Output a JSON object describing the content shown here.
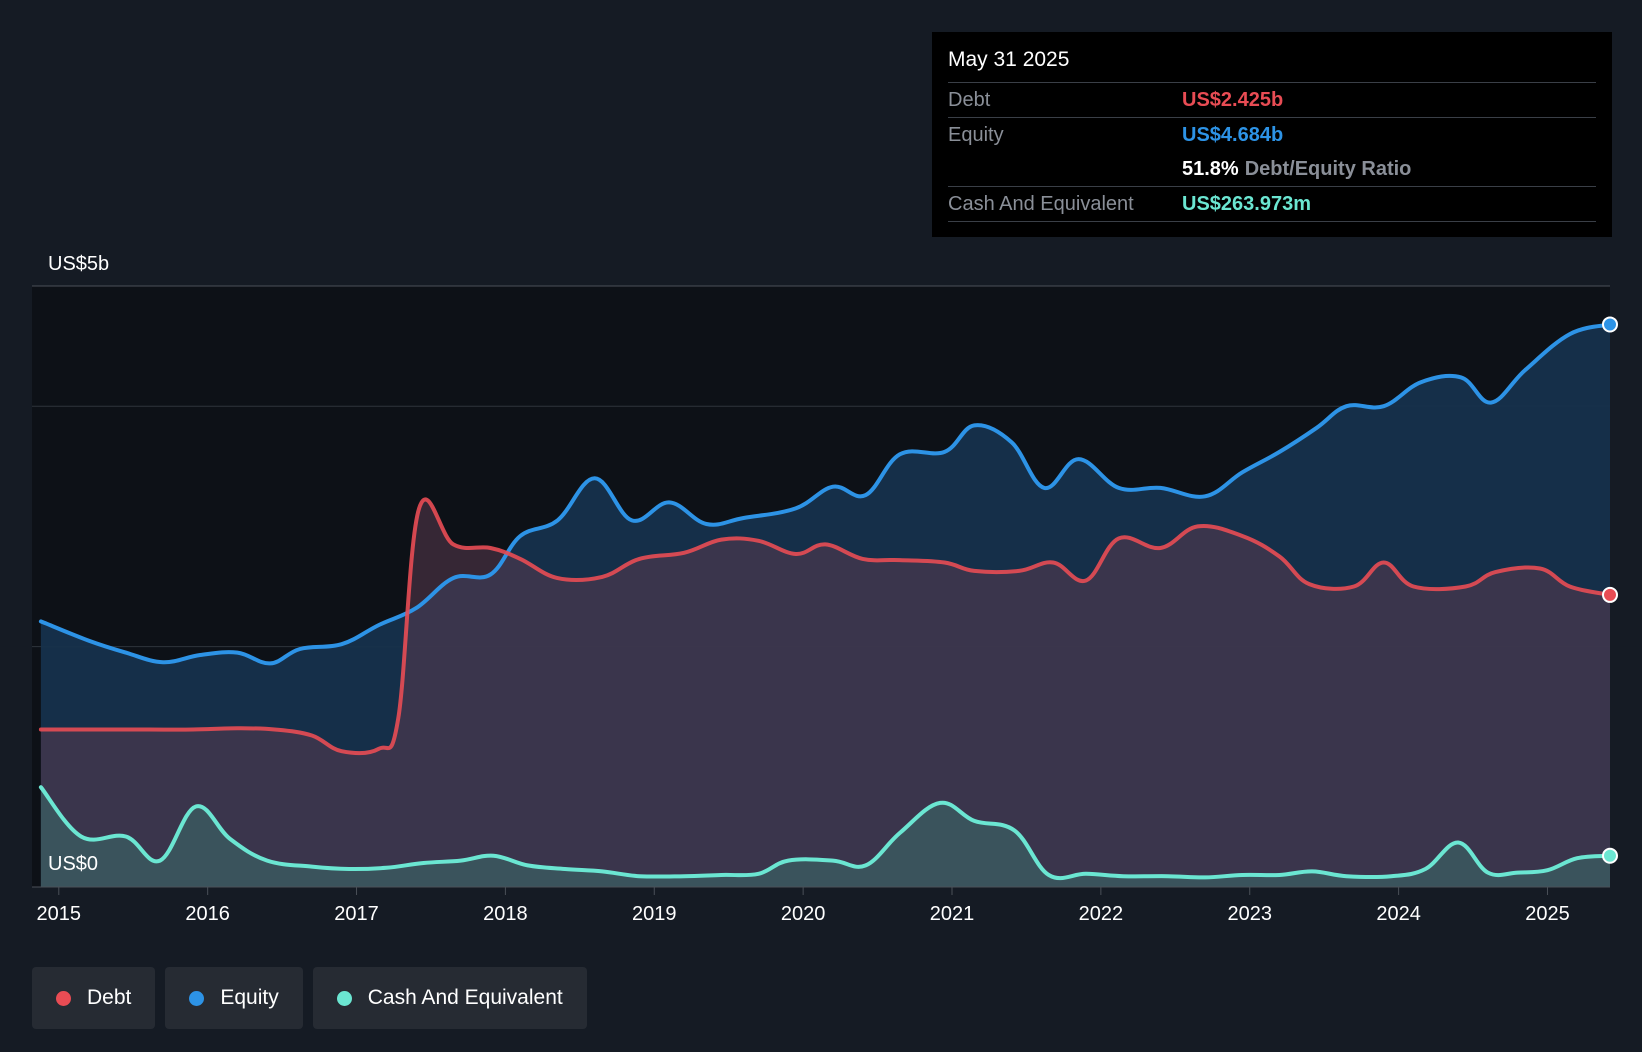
{
  "tooltip": {
    "date": "May 31 2025",
    "debt_label": "Debt",
    "debt_value": "US$2.425b",
    "equity_label": "Equity",
    "equity_value": "US$4.684b",
    "ratio_value": "51.8%",
    "ratio_label": "Debt/Equity Ratio",
    "cash_label": "Cash And Equivalent",
    "cash_value": "US$263.973m"
  },
  "legend": [
    {
      "label": "Debt",
      "color": "#e84c54"
    },
    {
      "label": "Equity",
      "color": "#2d93e6"
    },
    {
      "label": "Cash And Equivalent",
      "color": "#6be6d2"
    }
  ],
  "chart_data": {
    "type": "area",
    "title": "",
    "y_top_label": "US$5b",
    "y_bottom_label": "US$0",
    "ylim": [
      0,
      5
    ],
    "xlim": [
      2014.82,
      2025.42
    ],
    "x_ticks": [
      "2015",
      "2016",
      "2017",
      "2018",
      "2019",
      "2020",
      "2021",
      "2022",
      "2023",
      "2024",
      "2025"
    ],
    "colors": {
      "debt": "#e84c54",
      "equity": "#2d93e6",
      "cash": "#6be6d2"
    },
    "series": [
      {
        "name": "Equity",
        "x": [
          2014.88,
          2015.2,
          2015.45,
          2015.7,
          2015.95,
          2016.2,
          2016.42,
          2016.62,
          2016.9,
          2017.15,
          2017.4,
          2017.65,
          2017.9,
          2018.1,
          2018.35,
          2018.6,
          2018.85,
          2019.1,
          2019.35,
          2019.6,
          2019.95,
          2020.2,
          2020.42,
          2020.65,
          2020.95,
          2021.15,
          2021.4,
          2021.62,
          2021.85,
          2022.12,
          2022.4,
          2022.7,
          2022.95,
          2023.2,
          2023.45,
          2023.65,
          2023.9,
          2024.15,
          2024.42,
          2024.62,
          2024.85,
          2025.15,
          2025.42
        ],
        "values": [
          2.21,
          2.05,
          1.95,
          1.87,
          1.93,
          1.95,
          1.86,
          1.98,
          2.02,
          2.18,
          2.32,
          2.57,
          2.6,
          2.92,
          3.05,
          3.4,
          3.05,
          3.2,
          3.02,
          3.07,
          3.15,
          3.33,
          3.26,
          3.6,
          3.62,
          3.84,
          3.7,
          3.32,
          3.56,
          3.32,
          3.32,
          3.25,
          3.45,
          3.62,
          3.82,
          4.0,
          4.0,
          4.2,
          4.24,
          4.03,
          4.3,
          4.6,
          4.68
        ]
      },
      {
        "name": "Debt",
        "x": [
          2014.88,
          2015.3,
          2015.6,
          2015.9,
          2016.2,
          2016.45,
          2016.7,
          2016.9,
          2017.15,
          2017.28,
          2017.42,
          2017.65,
          2017.9,
          2018.1,
          2018.35,
          2018.65,
          2018.9,
          2019.2,
          2019.45,
          2019.7,
          2019.95,
          2020.15,
          2020.4,
          2020.65,
          2020.95,
          2021.15,
          2021.45,
          2021.68,
          2021.9,
          2022.12,
          2022.4,
          2022.65,
          2022.95,
          2023.2,
          2023.4,
          2023.7,
          2023.9,
          2024.1,
          2024.45,
          2024.65,
          2024.95,
          2025.15,
          2025.42
        ],
        "values": [
          1.31,
          1.31,
          1.31,
          1.31,
          1.32,
          1.31,
          1.26,
          1.13,
          1.15,
          1.4,
          3.15,
          2.85,
          2.82,
          2.73,
          2.57,
          2.58,
          2.73,
          2.78,
          2.89,
          2.88,
          2.77,
          2.85,
          2.73,
          2.72,
          2.7,
          2.63,
          2.63,
          2.7,
          2.55,
          2.9,
          2.82,
          3.0,
          2.92,
          2.75,
          2.52,
          2.5,
          2.7,
          2.5,
          2.5,
          2.62,
          2.65,
          2.5,
          2.43
        ]
      },
      {
        "name": "Cash And Equivalent",
        "x": [
          2014.88,
          2015.15,
          2015.45,
          2015.68,
          2015.92,
          2016.15,
          2016.4,
          2016.7,
          2016.95,
          2017.2,
          2017.45,
          2017.7,
          2017.92,
          2018.15,
          2018.4,
          2018.65,
          2018.9,
          2019.2,
          2019.45,
          2019.7,
          2019.9,
          2020.2,
          2020.42,
          2020.65,
          2020.92,
          2021.15,
          2021.42,
          2021.65,
          2021.9,
          2022.15,
          2022.45,
          2022.7,
          2022.95,
          2023.2,
          2023.42,
          2023.65,
          2023.95,
          2024.18,
          2024.4,
          2024.6,
          2024.8,
          2025.0,
          2025.2,
          2025.42
        ],
        "values": [
          0.83,
          0.42,
          0.42,
          0.22,
          0.67,
          0.4,
          0.22,
          0.17,
          0.15,
          0.16,
          0.2,
          0.22,
          0.26,
          0.18,
          0.15,
          0.13,
          0.09,
          0.09,
          0.1,
          0.11,
          0.22,
          0.22,
          0.18,
          0.45,
          0.7,
          0.55,
          0.47,
          0.1,
          0.11,
          0.09,
          0.09,
          0.08,
          0.1,
          0.1,
          0.13,
          0.09,
          0.09,
          0.15,
          0.37,
          0.12,
          0.12,
          0.14,
          0.24,
          0.26
        ]
      }
    ]
  }
}
